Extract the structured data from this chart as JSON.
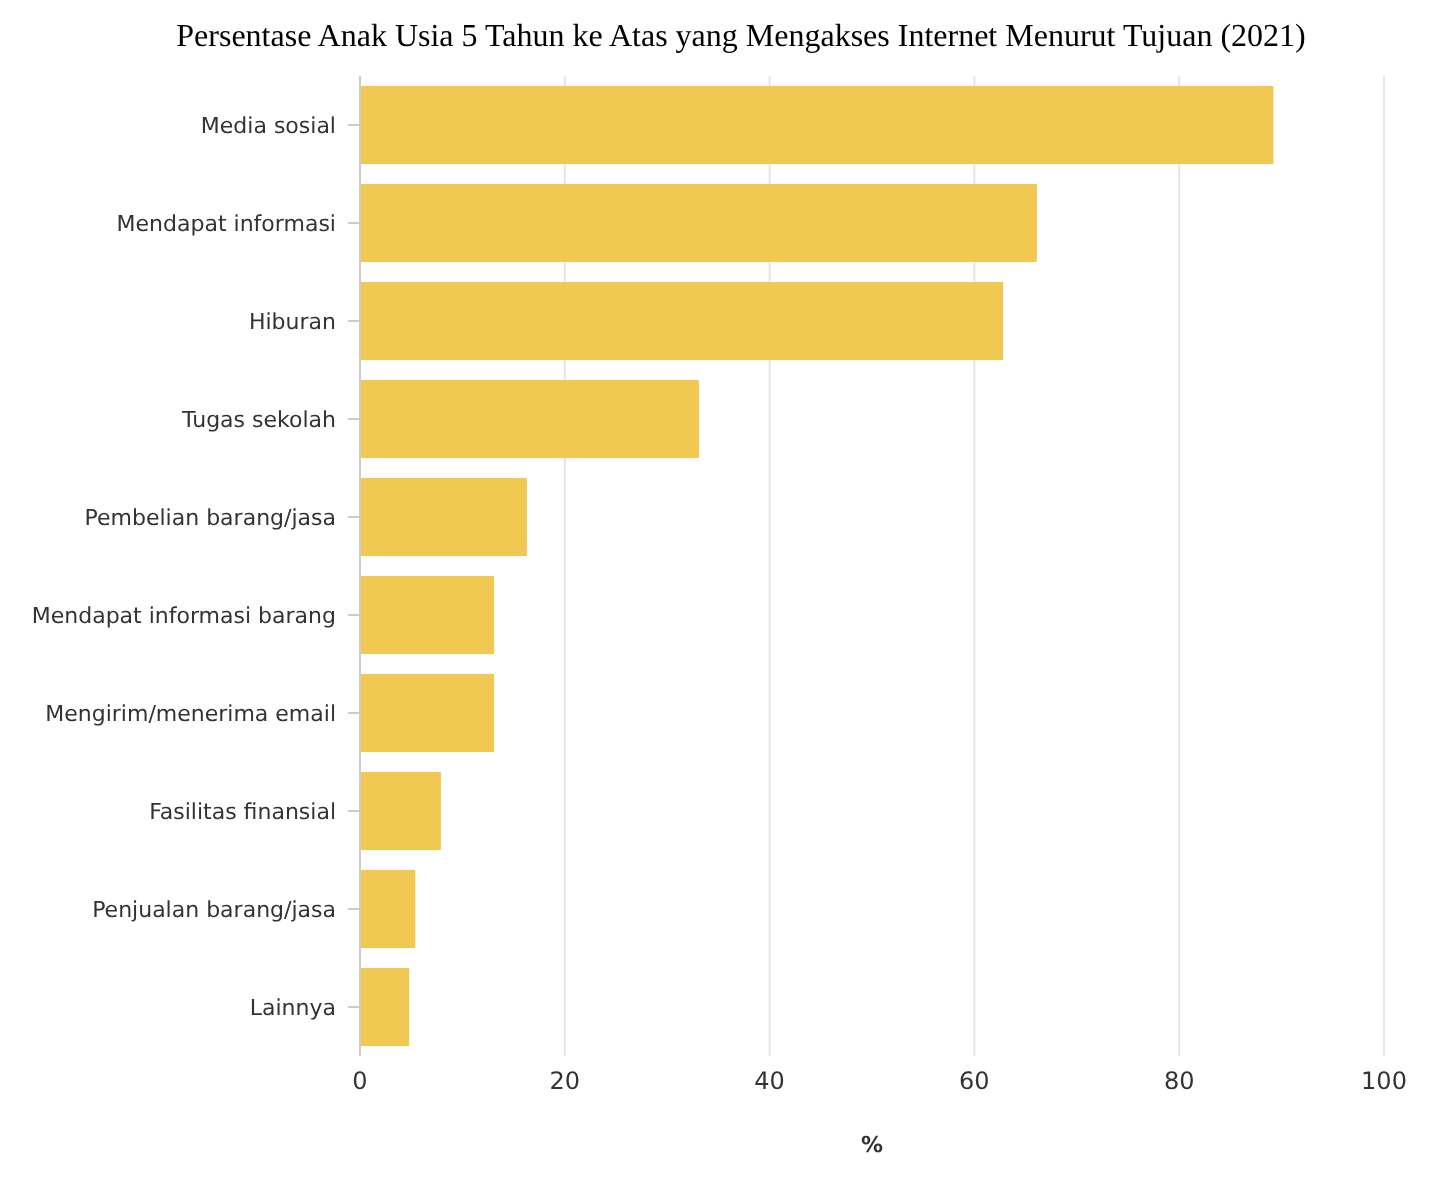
{
  "chart_data": {
    "type": "bar",
    "orientation": "horizontal",
    "title": "Persentase Anak Usia 5 Tahun ke Atas yang Mengakses Internet Menurut Tujuan (2021)",
    "xlabel": "%",
    "categories": [
      "Media sosial",
      "Mendapat informasi",
      "Hiburan",
      "Tugas sekolah",
      "Pembelian barang/jasa",
      "Mendapat informasi barang",
      "Mengirim/menerima email",
      "Fasilitas finansial",
      "Penjualan barang/jasa",
      "Lainnya"
    ],
    "values": [
      89.2,
      66.1,
      62.8,
      33.1,
      16.3,
      13.1,
      13.1,
      7.9,
      5.4,
      4.8
    ],
    "color": "#f1c852",
    "xlim": [
      0,
      100
    ],
    "xticks": [
      0,
      20,
      40,
      60,
      80,
      100
    ],
    "grid": "x"
  }
}
